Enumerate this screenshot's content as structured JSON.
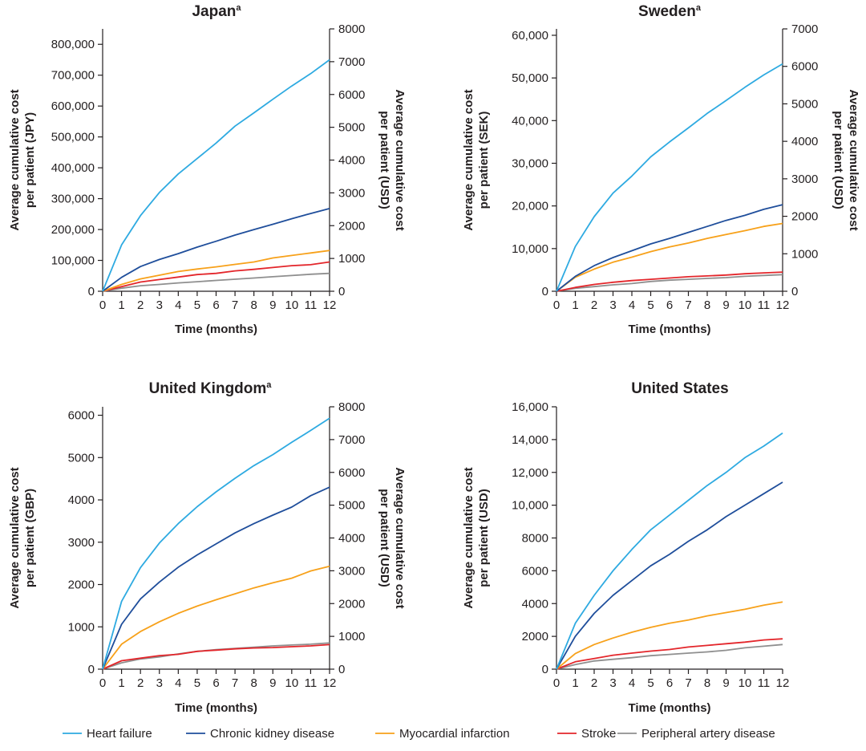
{
  "chart_data": [
    {
      "type": "line",
      "title": "Japan",
      "title_superscript": "a",
      "xlabel": "Time (months)",
      "ylabel_lines": [
        "Average cumulative cost",
        "per patient (JPY)"
      ],
      "y2label_lines": [
        "Average cumulative cost",
        "per patient (USD)"
      ],
      "x": [
        0,
        1,
        2,
        3,
        4,
        5,
        6,
        7,
        8,
        9,
        10,
        11,
        12
      ],
      "xlim": [
        0,
        12
      ],
      "ylim": [
        0,
        850000
      ],
      "yticks": [
        0,
        100000,
        200000,
        300000,
        400000,
        500000,
        600000,
        700000,
        800000
      ],
      "ytick_labels": [
        "0",
        "100,000",
        "200,000",
        "300,000",
        "400,000",
        "500,000",
        "600,000",
        "700,000",
        "800,000"
      ],
      "y2lim": [
        0,
        8000
      ],
      "y2ticks": [
        0,
        1000,
        2000,
        3000,
        4000,
        5000,
        6000,
        7000,
        8000
      ],
      "y2tick_labels": [
        "0",
        "1000",
        "2000",
        "3000",
        "4000",
        "5000",
        "6000",
        "7000",
        "8000"
      ],
      "grid": false,
      "series": [
        {
          "name": "Heart failure",
          "values": [
            0,
            150000,
            245000,
            320000,
            380000,
            430000,
            480000,
            535000,
            578000,
            622000,
            665000,
            705000,
            750000
          ]
        },
        {
          "name": "Chronic kidney disease",
          "values": [
            0,
            45000,
            80000,
            103000,
            122000,
            143000,
            162000,
            182000,
            200000,
            217000,
            235000,
            252000,
            268000
          ]
        },
        {
          "name": "Myocardial infarction",
          "values": [
            0,
            22000,
            40000,
            52000,
            64000,
            72000,
            79000,
            87000,
            95000,
            108000,
            116000,
            124000,
            132000
          ]
        },
        {
          "name": "Stroke",
          "values": [
            0,
            15000,
            30000,
            38000,
            46000,
            54000,
            58000,
            66000,
            71000,
            77000,
            83000,
            86000,
            95000
          ]
        },
        {
          "name": "Peripheral artery disease",
          "values": [
            0,
            10000,
            18000,
            22000,
            27000,
            31000,
            35000,
            39000,
            43000,
            47000,
            51000,
            55000,
            58000
          ]
        }
      ]
    },
    {
      "type": "line",
      "title": "Sweden",
      "title_superscript": "a",
      "xlabel": "Time (months)",
      "ylabel_lines": [
        "Average cumulative cost",
        "per patient (SEK)"
      ],
      "y2label_lines": [
        "Average cumulative cost",
        "per patient (USD)"
      ],
      "x": [
        0,
        1,
        2,
        3,
        4,
        5,
        6,
        7,
        8,
        9,
        10,
        11,
        12
      ],
      "xlim": [
        0,
        12
      ],
      "ylim": [
        0,
        61500
      ],
      "yticks": [
        0,
        10000,
        20000,
        30000,
        40000,
        50000,
        60000
      ],
      "ytick_labels": [
        "0",
        "10,000",
        "20,000",
        "30,000",
        "40,000",
        "50,000",
        "60,000"
      ],
      "y2lim": [
        0,
        7000
      ],
      "y2ticks": [
        0,
        1000,
        2000,
        3000,
        4000,
        5000,
        6000,
        7000
      ],
      "y2tick_labels": [
        "0",
        "1000",
        "2000",
        "3000",
        "4000",
        "5000",
        "6000",
        "7000"
      ],
      "grid": false,
      "series": [
        {
          "name": "Heart failure",
          "values": [
            0,
            10500,
            17500,
            23000,
            27000,
            31500,
            35000,
            38300,
            41700,
            44700,
            47800,
            50700,
            53300
          ]
        },
        {
          "name": "Chronic kidney disease",
          "values": [
            0,
            3500,
            6000,
            7900,
            9500,
            11100,
            12400,
            13800,
            15200,
            16600,
            17800,
            19200,
            20300
          ]
        },
        {
          "name": "Myocardial infarction",
          "values": [
            0,
            3300,
            5200,
            6800,
            8000,
            9300,
            10400,
            11300,
            12400,
            13300,
            14200,
            15200,
            15900
          ]
        },
        {
          "name": "Stroke",
          "values": [
            0,
            900,
            1600,
            2100,
            2500,
            2800,
            3100,
            3400,
            3600,
            3800,
            4100,
            4300,
            4500
          ]
        },
        {
          "name": "Peripheral artery disease",
          "values": [
            0,
            700,
            1100,
            1500,
            1800,
            2300,
            2600,
            2800,
            3000,
            3200,
            3500,
            3700,
            3900
          ]
        }
      ]
    },
    {
      "type": "line",
      "title": "United Kingdom",
      "title_superscript": "a",
      "xlabel": "Time (months)",
      "ylabel_lines": [
        "Average cumulative cost",
        "per patient (GBP)"
      ],
      "y2label_lines": [
        "Average cumulative cost",
        "per patient (USD)"
      ],
      "x": [
        0,
        1,
        2,
        3,
        4,
        5,
        6,
        7,
        8,
        9,
        10,
        11,
        12
      ],
      "xlim": [
        0,
        12
      ],
      "ylim": [
        0,
        6200
      ],
      "yticks": [
        0,
        1000,
        2000,
        3000,
        4000,
        5000,
        6000
      ],
      "ytick_labels": [
        "0",
        "1000",
        "2000",
        "3000",
        "4000",
        "5000",
        "6000"
      ],
      "y2lim": [
        0,
        8000
      ],
      "y2ticks": [
        0,
        1000,
        2000,
        3000,
        4000,
        5000,
        6000,
        7000,
        8000
      ],
      "y2tick_labels": [
        "0",
        "1000",
        "2000",
        "3000",
        "4000",
        "5000",
        "6000",
        "7000",
        "8000"
      ],
      "grid": false,
      "series": [
        {
          "name": "Heart failure",
          "values": [
            0,
            1600,
            2400,
            2980,
            3440,
            3840,
            4190,
            4510,
            4810,
            5070,
            5360,
            5640,
            5930
          ]
        },
        {
          "name": "Chronic kidney disease",
          "values": [
            0,
            1060,
            1660,
            2060,
            2410,
            2700,
            2960,
            3220,
            3440,
            3640,
            3830,
            4100,
            4300
          ]
        },
        {
          "name": "Myocardial infarction",
          "values": [
            0,
            590,
            890,
            1120,
            1320,
            1490,
            1640,
            1780,
            1920,
            2040,
            2150,
            2320,
            2430
          ]
        },
        {
          "name": "Stroke",
          "values": [
            0,
            200,
            260,
            320,
            350,
            420,
            450,
            480,
            500,
            510,
            530,
            550,
            580
          ]
        },
        {
          "name": "Peripheral artery disease",
          "values": [
            0,
            150,
            240,
            290,
            360,
            420,
            460,
            490,
            520,
            550,
            570,
            590,
            620
          ]
        }
      ]
    },
    {
      "type": "line",
      "title": "United States",
      "title_superscript": "",
      "xlabel": "Time (months)",
      "ylabel_lines": [
        "Average cumulative cost",
        "per patient (USD)"
      ],
      "y2label_lines": [],
      "x": [
        0,
        1,
        2,
        3,
        4,
        5,
        6,
        7,
        8,
        9,
        10,
        11,
        12
      ],
      "xlim": [
        0,
        12
      ],
      "ylim": [
        0,
        16000
      ],
      "yticks": [
        0,
        2000,
        4000,
        6000,
        8000,
        10000,
        12000,
        14000,
        16000
      ],
      "ytick_labels": [
        "0",
        "2000",
        "4000",
        "6000",
        "8000",
        "10,000",
        "12,000",
        "14,000",
        "16,000"
      ],
      "grid": false,
      "series": [
        {
          "name": "Heart failure",
          "values": [
            0,
            2800,
            4500,
            6000,
            7300,
            8500,
            9400,
            10300,
            11200,
            12000,
            12900,
            13600,
            14400
          ]
        },
        {
          "name": "Chronic kidney disease",
          "values": [
            0,
            2000,
            3400,
            4500,
            5400,
            6300,
            7000,
            7800,
            8500,
            9300,
            10000,
            10700,
            11400
          ]
        },
        {
          "name": "Myocardial infarction",
          "values": [
            0,
            950,
            1500,
            1900,
            2250,
            2550,
            2800,
            3000,
            3250,
            3450,
            3650,
            3900,
            4100
          ]
        },
        {
          "name": "Stroke",
          "values": [
            0,
            450,
            650,
            850,
            980,
            1100,
            1200,
            1350,
            1450,
            1550,
            1650,
            1780,
            1850
          ]
        },
        {
          "name": "Peripheral artery disease",
          "values": [
            0,
            280,
            500,
            600,
            700,
            820,
            900,
            980,
            1050,
            1150,
            1300,
            1400,
            1500
          ]
        }
      ]
    }
  ],
  "legend": {
    "placement": "bottom",
    "items": [
      {
        "label": "Heart failure",
        "color": "#2eaae1"
      },
      {
        "label": "Chronic kidney disease",
        "color": "#1f4e9b"
      },
      {
        "label": "Myocardial infarction",
        "color": "#f7a11a"
      },
      {
        "label": "Stroke",
        "color": "#e3262b"
      },
      {
        "label": "Peripheral artery disease",
        "color": "#8f8f8f"
      }
    ]
  }
}
